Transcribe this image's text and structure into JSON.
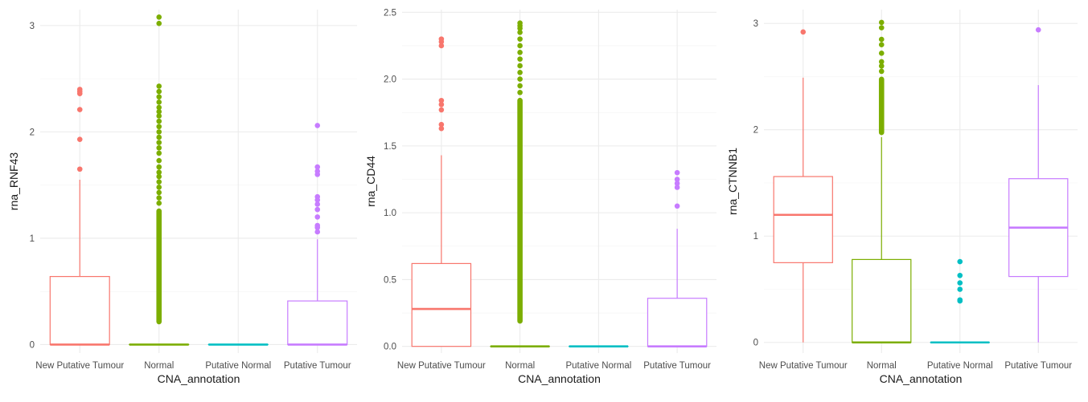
{
  "chart_data": [
    {
      "type": "boxplot",
      "xlabel": "CNA_annotation",
      "ylabel": "rna_RNF43",
      "ylim": [
        -0.08,
        3.15
      ],
      "yticks": [
        0,
        1,
        2,
        3
      ],
      "categories": [
        "New Putative Tumour",
        "Normal",
        "Putative Normal",
        "Putative Tumour"
      ],
      "colors": [
        "#F8766D",
        "#7CAE00",
        "#00BFC4",
        "#C77CFF"
      ],
      "boxes": [
        {
          "q1": 0,
          "median": 0,
          "q3": 0.64,
          "whisker_low": 0,
          "whisker_high": 1.55,
          "outliers": [
            1.65,
            1.93,
            2.21,
            2.36,
            2.38,
            2.4
          ]
        },
        {
          "q1": 0,
          "median": 0,
          "q3": 0,
          "whisker_low": 0,
          "whisker_high": 0,
          "outlier_band": [
            0.19,
            1.28
          ],
          "outliers": [
            1.33,
            1.38,
            1.43,
            1.48,
            1.53,
            1.58,
            1.62,
            1.67,
            1.73,
            1.8,
            1.85,
            1.9,
            1.95,
            2.0,
            2.05,
            2.1,
            2.15,
            2.19,
            2.23,
            2.28,
            2.33,
            2.38,
            2.43,
            3.02,
            3.08
          ]
        },
        {
          "q1": 0,
          "median": 0,
          "q3": 0,
          "whisker_low": 0,
          "whisker_high": 0,
          "outliers": []
        },
        {
          "q1": 0,
          "median": 0,
          "q3": 0.41,
          "whisker_low": 0,
          "whisker_high": 0.99,
          "outliers": [
            1.06,
            1.1,
            1.12,
            1.2,
            1.27,
            1.32,
            1.36,
            1.39,
            1.6,
            1.63,
            1.67,
            2.06
          ]
        }
      ]
    },
    {
      "type": "boxplot",
      "xlabel": "CNA_annotation",
      "ylabel": "rna_CD44",
      "ylim": [
        -0.05,
        2.52
      ],
      "yticks": [
        0,
        0.5,
        1.0,
        1.5,
        2.0,
        2.5
      ],
      "ytick_labels": [
        "0.0",
        "0.5",
        "1.0",
        "1.5",
        "2.0",
        "2.5"
      ],
      "categories": [
        "New Putative Tumour",
        "Normal",
        "Putative Normal",
        "Putative Tumour"
      ],
      "colors": [
        "#F8766D",
        "#7CAE00",
        "#00BFC4",
        "#C77CFF"
      ],
      "boxes": [
        {
          "q1": 0,
          "median": 0.28,
          "q3": 0.62,
          "whisker_low": 0,
          "whisker_high": 1.43,
          "outliers": [
            1.63,
            1.66,
            1.77,
            1.81,
            1.84,
            2.25,
            2.28,
            2.3
          ]
        },
        {
          "q1": 0,
          "median": 0,
          "q3": 0,
          "whisker_low": 0,
          "whisker_high": 0,
          "outlier_band": [
            0.17,
            1.86
          ],
          "outliers": [
            1.9,
            1.95,
            2.0,
            2.05,
            2.1,
            2.15,
            2.2,
            2.25,
            2.3,
            2.35,
            2.38,
            2.4,
            2.42
          ]
        },
        {
          "q1": 0,
          "median": 0,
          "q3": 0,
          "whisker_low": 0,
          "whisker_high": 0,
          "outliers": []
        },
        {
          "q1": 0,
          "median": 0,
          "q3": 0.36,
          "whisker_low": 0,
          "whisker_high": 0.88,
          "outliers": [
            1.05,
            1.19,
            1.22,
            1.25,
            1.3
          ]
        }
      ]
    },
    {
      "type": "boxplot",
      "xlabel": "CNA_annotation",
      "ylabel": "rna_CTNNB1",
      "ylim": [
        -0.1,
        3.13
      ],
      "yticks": [
        0,
        1,
        2,
        3
      ],
      "categories": [
        "New Putative Tumour",
        "Normal",
        "Putative Normal",
        "Putative Tumour"
      ],
      "colors": [
        "#F8766D",
        "#7CAE00",
        "#00BFC4",
        "#C77CFF"
      ],
      "boxes": [
        {
          "q1": 0.75,
          "median": 1.2,
          "q3": 1.56,
          "whisker_low": 0,
          "whisker_high": 2.49,
          "outliers": [
            2.92
          ]
        },
        {
          "q1": 0,
          "median": 0,
          "q3": 0.78,
          "whisker_low": 0,
          "whisker_high": 1.93,
          "outlier_band": [
            1.95,
            2.5
          ],
          "outliers": [
            2.55,
            2.6,
            2.64,
            2.72,
            2.8,
            2.85,
            2.96,
            3.01
          ]
        },
        {
          "q1": 0,
          "median": 0,
          "q3": 0,
          "whisker_low": 0,
          "whisker_high": 0,
          "outliers": [
            0.39,
            0.4,
            0.5,
            0.56,
            0.63,
            0.76
          ]
        },
        {
          "q1": 0.62,
          "median": 1.08,
          "q3": 1.54,
          "whisker_low": 0,
          "whisker_high": 2.42,
          "outliers": [
            2.94
          ]
        }
      ]
    }
  ]
}
